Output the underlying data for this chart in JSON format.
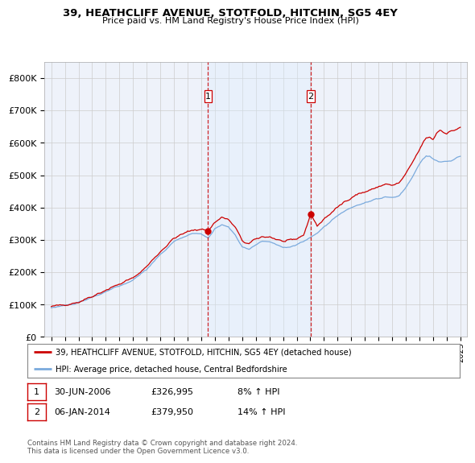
{
  "title": "39, HEATHCLIFF AVENUE, STOTFOLD, HITCHIN, SG5 4EY",
  "subtitle": "Price paid vs. HM Land Registry's House Price Index (HPI)",
  "legend_label_red": "39, HEATHCLIFF AVENUE, STOTFOLD, HITCHIN, SG5 4EY (detached house)",
  "legend_label_blue": "HPI: Average price, detached house, Central Bedfordshire",
  "sale1_date": "30-JUN-2006",
  "sale1_price": "£326,995",
  "sale1_hpi": "8% ↑ HPI",
  "sale1_year": 2006.5,
  "sale1_value": 326995,
  "sale2_date": "06-JAN-2014",
  "sale2_price": "£379,950",
  "sale2_hpi": "14% ↑ HPI",
  "sale2_year": 2014.04,
  "sale2_value": 379950,
  "footer": "Contains HM Land Registry data © Crown copyright and database right 2024.\nThis data is licensed under the Open Government Licence v3.0.",
  "background_color": "#ffffff",
  "plot_bg_color": "#eef2fa",
  "grid_color": "#cccccc",
  "red_color": "#cc0000",
  "blue_color": "#7aaadd",
  "shade_color": "#ddeeff",
  "ylim": [
    0,
    850000
  ],
  "yticks": [
    0,
    100000,
    200000,
    300000,
    400000,
    500000,
    600000,
    700000,
    800000
  ],
  "xlim_start": 1994.5,
  "xlim_end": 2025.5,
  "xticks": [
    1995,
    1996,
    1997,
    1998,
    1999,
    2000,
    2001,
    2002,
    2003,
    2004,
    2005,
    2006,
    2007,
    2008,
    2009,
    2010,
    2011,
    2012,
    2013,
    2014,
    2015,
    2016,
    2017,
    2018,
    2019,
    2020,
    2021,
    2022,
    2023,
    2024,
    2025
  ],
  "hpi_years": [
    1995.0,
    1995.083,
    1995.167,
    1995.25,
    1995.333,
    1995.417,
    1995.5,
    1995.583,
    1995.667,
    1995.75,
    1995.833,
    1995.917,
    1996.0,
    1996.083,
    1996.167,
    1996.25,
    1996.333,
    1996.417,
    1996.5,
    1996.583,
    1996.667,
    1996.75,
    1996.833,
    1996.917,
    1997.0,
    1997.083,
    1997.167,
    1997.25,
    1997.333,
    1997.417,
    1997.5,
    1997.583,
    1997.667,
    1997.75,
    1997.833,
    1997.917,
    1998.0,
    1998.083,
    1998.167,
    1998.25,
    1998.333,
    1998.417,
    1998.5,
    1998.583,
    1998.667,
    1998.75,
    1998.833,
    1998.917,
    1999.0,
    1999.083,
    1999.167,
    1999.25,
    1999.333,
    1999.417,
    1999.5,
    1999.583,
    1999.667,
    1999.75,
    1999.833,
    1999.917,
    2000.0,
    2000.083,
    2000.167,
    2000.25,
    2000.333,
    2000.417,
    2000.5,
    2000.583,
    2000.667,
    2000.75,
    2000.833,
    2000.917,
    2001.0,
    2001.083,
    2001.167,
    2001.25,
    2001.333,
    2001.417,
    2001.5,
    2001.583,
    2001.667,
    2001.75,
    2001.833,
    2001.917,
    2002.0,
    2002.083,
    2002.167,
    2002.25,
    2002.333,
    2002.417,
    2002.5,
    2002.583,
    2002.667,
    2002.75,
    2002.833,
    2002.917,
    2003.0,
    2003.083,
    2003.167,
    2003.25,
    2003.333,
    2003.417,
    2003.5,
    2003.583,
    2003.667,
    2003.75,
    2003.833,
    2003.917,
    2004.0,
    2004.083,
    2004.167,
    2004.25,
    2004.333,
    2004.417,
    2004.5,
    2004.583,
    2004.667,
    2004.75,
    2004.833,
    2004.917,
    2005.0,
    2005.083,
    2005.167,
    2005.25,
    2005.333,
    2005.417,
    2005.5,
    2005.583,
    2005.667,
    2005.75,
    2005.833,
    2005.917,
    2006.0,
    2006.083,
    2006.167,
    2006.25,
    2006.333,
    2006.417,
    2006.5,
    2006.583,
    2006.667,
    2006.75,
    2006.833,
    2006.917,
    2007.0,
    2007.083,
    2007.167,
    2007.25,
    2007.333,
    2007.417,
    2007.5,
    2007.583,
    2007.667,
    2007.75,
    2007.833,
    2007.917,
    2008.0,
    2008.083,
    2008.167,
    2008.25,
    2008.333,
    2008.417,
    2008.5,
    2008.583,
    2008.667,
    2008.75,
    2008.833,
    2008.917,
    2009.0,
    2009.083,
    2009.167,
    2009.25,
    2009.333,
    2009.417,
    2009.5,
    2009.583,
    2009.667,
    2009.75,
    2009.833,
    2009.917,
    2010.0,
    2010.083,
    2010.167,
    2010.25,
    2010.333,
    2010.417,
    2010.5,
    2010.583,
    2010.667,
    2010.75,
    2010.833,
    2010.917,
    2011.0,
    2011.083,
    2011.167,
    2011.25,
    2011.333,
    2011.417,
    2011.5,
    2011.583,
    2011.667,
    2011.75,
    2011.833,
    2011.917,
    2012.0,
    2012.083,
    2012.167,
    2012.25,
    2012.333,
    2012.417,
    2012.5,
    2012.583,
    2012.667,
    2012.75,
    2012.833,
    2012.917,
    2013.0,
    2013.083,
    2013.167,
    2013.25,
    2013.333,
    2013.417,
    2013.5,
    2013.583,
    2013.667,
    2013.75,
    2013.833,
    2013.917,
    2014.0,
    2014.083,
    2014.167,
    2014.25,
    2014.333,
    2014.417,
    2014.5,
    2014.583,
    2014.667,
    2014.75,
    2014.833,
    2014.917,
    2015.0,
    2015.083,
    2015.167,
    2015.25,
    2015.333,
    2015.417,
    2015.5,
    2015.583,
    2015.667,
    2015.75,
    2015.833,
    2015.917,
    2016.0,
    2016.083,
    2016.167,
    2016.25,
    2016.333,
    2016.417,
    2016.5,
    2016.583,
    2016.667,
    2016.75,
    2016.833,
    2016.917,
    2017.0,
    2017.083,
    2017.167,
    2017.25,
    2017.333,
    2017.417,
    2017.5,
    2017.583,
    2017.667,
    2017.75,
    2017.833,
    2017.917,
    2018.0,
    2018.083,
    2018.167,
    2018.25,
    2018.333,
    2018.417,
    2018.5,
    2018.583,
    2018.667,
    2018.75,
    2018.833,
    2018.917,
    2019.0,
    2019.083,
    2019.167,
    2019.25,
    2019.333,
    2019.417,
    2019.5,
    2019.583,
    2019.667,
    2019.75,
    2019.833,
    2019.917,
    2020.0,
    2020.083,
    2020.167,
    2020.25,
    2020.333,
    2020.417,
    2020.5,
    2020.583,
    2020.667,
    2020.75,
    2020.833,
    2020.917,
    2021.0,
    2021.083,
    2021.167,
    2021.25,
    2021.333,
    2021.417,
    2021.5,
    2021.583,
    2021.667,
    2021.75,
    2021.833,
    2021.917,
    2022.0,
    2022.083,
    2022.167,
    2022.25,
    2022.333,
    2022.417,
    2022.5,
    2022.583,
    2022.667,
    2022.75,
    2022.833,
    2022.917,
    2023.0,
    2023.083,
    2023.167,
    2023.25,
    2023.333,
    2023.417,
    2023.5,
    2023.583,
    2023.667,
    2023.75,
    2023.833,
    2023.917,
    2024.0,
    2024.083,
    2024.167,
    2024.25,
    2024.333,
    2024.417,
    2024.5,
    2024.583,
    2024.667,
    2024.75,
    2024.833,
    2024.917,
    2025.0
  ]
}
